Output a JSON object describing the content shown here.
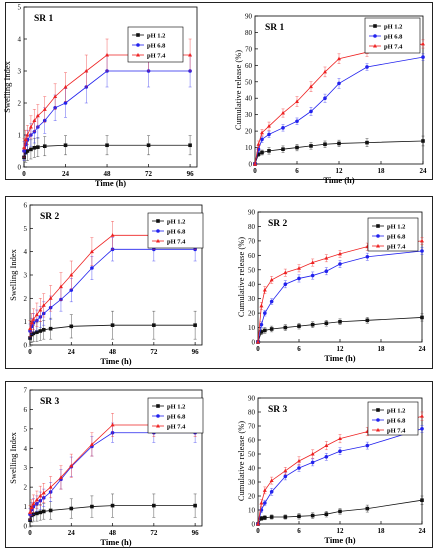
{
  "series_colors": [
    "#111111",
    "#2222ee",
    "#ee2222"
  ],
  "series_markers": [
    "square",
    "circle",
    "triangle"
  ],
  "chart_data": [
    {
      "type": "line",
      "panel": 0,
      "title": "SR 1",
      "xlabel": "Time (h)",
      "ylabel": "Swelling Index",
      "xlim": [
        0,
        100
      ],
      "ylim": [
        0,
        5
      ],
      "xticks": [
        0,
        24,
        48,
        72,
        96
      ],
      "yticks": [
        0,
        1,
        2,
        3,
        4,
        5
      ],
      "legend": "top-right",
      "series": [
        {
          "name": "pH 1.2",
          "x": [
            0,
            1,
            2,
            4,
            6,
            8,
            12,
            24,
            48,
            72,
            96
          ],
          "y": [
            0.3,
            0.45,
            0.5,
            0.55,
            0.6,
            0.62,
            0.65,
            0.68,
            0.68,
            0.68,
            0.68
          ],
          "err": [
            0.3,
            0.3,
            0.3,
            0.3,
            0.3,
            0.3,
            0.3,
            0.3,
            0.3,
            0.3,
            0.3
          ]
        },
        {
          "name": "pH 6.8",
          "x": [
            0,
            1,
            2,
            4,
            6,
            8,
            12,
            18,
            24,
            36,
            48,
            72,
            96
          ],
          "y": [
            0.5,
            0.7,
            0.85,
            1.0,
            1.1,
            1.25,
            1.45,
            1.85,
            2.0,
            2.5,
            3.0,
            3.0,
            3.0
          ],
          "err": [
            0.3,
            0.3,
            0.3,
            0.35,
            0.35,
            0.35,
            0.4,
            0.4,
            0.45,
            0.5,
            0.5,
            0.5,
            0.5
          ]
        },
        {
          "name": "pH 7.4",
          "x": [
            0,
            1,
            2,
            4,
            6,
            8,
            12,
            18,
            24,
            36,
            48,
            72,
            96
          ],
          "y": [
            0.6,
            0.85,
            1.0,
            1.25,
            1.45,
            1.6,
            1.8,
            2.2,
            2.5,
            3.0,
            3.5,
            3.5,
            3.5
          ],
          "err": [
            0.3,
            0.3,
            0.3,
            0.35,
            0.35,
            0.35,
            0.4,
            0.4,
            0.45,
            0.5,
            0.5,
            0.5,
            0.5
          ]
        }
      ]
    },
    {
      "type": "line",
      "panel": 0,
      "title": "SR 1",
      "xlabel": "Time (h)",
      "ylabel": "Cumulative release (%)",
      "xlim": [
        0,
        24
      ],
      "ylim": [
        0,
        90
      ],
      "xticks": [
        0,
        6,
        12,
        18,
        24
      ],
      "yticks": [
        0,
        10,
        20,
        30,
        40,
        50,
        60,
        70,
        80,
        90
      ],
      "legend": "top-left",
      "series": [
        {
          "name": "pH 1.2",
          "x": [
            0,
            0.5,
            1,
            2,
            4,
            6,
            8,
            10,
            12,
            16,
            24
          ],
          "y": [
            0,
            6,
            7,
            8,
            9,
            10,
            11,
            12,
            12.5,
            13,
            14
          ],
          "err": [
            1,
            1.5,
            1.5,
            2,
            2,
            2,
            2,
            2,
            2,
            2.5,
            3
          ]
        },
        {
          "name": "pH 6.8",
          "x": [
            0,
            0.5,
            1,
            2,
            4,
            6,
            8,
            10,
            12,
            16,
            24
          ],
          "y": [
            0,
            9,
            15,
            18,
            22,
            26,
            32,
            40,
            49,
            59,
            65
          ],
          "err": [
            1,
            2,
            2,
            2,
            2,
            2,
            2.5,
            2.5,
            3,
            2,
            2
          ]
        },
        {
          "name": "pH 7.4",
          "x": [
            0,
            0.5,
            1,
            2,
            4,
            6,
            8,
            10,
            12,
            16,
            24
          ],
          "y": [
            0,
            12,
            19,
            23,
            31,
            38,
            47,
            56,
            64,
            68,
            73
          ],
          "err": [
            1,
            2,
            2,
            2.5,
            2.5,
            3,
            3,
            3,
            3,
            2.5,
            2.5
          ]
        }
      ]
    },
    {
      "type": "line",
      "panel": 1,
      "title": "SR 2",
      "xlabel": "Time (h)",
      "ylabel": "Swelling Index",
      "xlim": [
        0,
        100
      ],
      "ylim": [
        0,
        6
      ],
      "xticks": [
        0,
        24,
        48,
        72,
        96
      ],
      "yticks": [
        0,
        1,
        2,
        3,
        4,
        5,
        6
      ],
      "legend": "top-right",
      "series": [
        {
          "name": "pH 1.2",
          "x": [
            0,
            1,
            2,
            4,
            6,
            8,
            12,
            24,
            48,
            72,
            96
          ],
          "y": [
            0.3,
            0.45,
            0.5,
            0.55,
            0.6,
            0.65,
            0.7,
            0.8,
            0.85,
            0.85,
            0.85
          ],
          "err": [
            0.35,
            0.35,
            0.35,
            0.4,
            0.4,
            0.4,
            0.45,
            0.5,
            0.6,
            0.6,
            0.6
          ]
        },
        {
          "name": "pH 6.8",
          "x": [
            0,
            1,
            2,
            4,
            6,
            8,
            12,
            18,
            24,
            36,
            48,
            72,
            96
          ],
          "y": [
            0.6,
            0.8,
            0.95,
            1.05,
            1.2,
            1.35,
            1.6,
            1.95,
            2.35,
            3.3,
            4.1,
            4.1,
            4.1
          ],
          "err": [
            0.3,
            0.35,
            0.4,
            0.45,
            0.45,
            0.5,
            0.5,
            0.5,
            0.5,
            0.5,
            0.5,
            0.5,
            0.5
          ]
        },
        {
          "name": "pH 7.4",
          "x": [
            0,
            1,
            2,
            4,
            6,
            8,
            12,
            18,
            24,
            36,
            48,
            72,
            96
          ],
          "y": [
            0.7,
            0.95,
            1.1,
            1.3,
            1.5,
            1.7,
            2.0,
            2.5,
            3.0,
            4.0,
            4.7,
            4.7,
            4.7
          ],
          "err": [
            0.35,
            0.4,
            0.45,
            0.5,
            0.5,
            0.5,
            0.55,
            0.6,
            0.6,
            0.6,
            0.6,
            0.6,
            0.6
          ]
        }
      ]
    },
    {
      "type": "line",
      "panel": 1,
      "title": "SR 2",
      "xlabel": "Time (h)",
      "ylabel": "Cumulative release (%)",
      "xlim": [
        0,
        24
      ],
      "ylim": [
        0,
        90
      ],
      "xticks": [
        0,
        6,
        12,
        18,
        24
      ],
      "yticks": [
        0,
        10,
        20,
        30,
        40,
        50,
        60,
        70,
        80,
        90
      ],
      "legend": "top-right",
      "series": [
        {
          "name": "pH 1.2",
          "x": [
            0,
            0.5,
            1,
            2,
            4,
            6,
            8,
            10,
            12,
            16,
            24
          ],
          "y": [
            0,
            7,
            8,
            9,
            10,
            11,
            12,
            13,
            14,
            15,
            17
          ],
          "err": [
            1,
            2,
            2,
            2,
            2,
            2,
            2,
            2,
            2,
            2,
            2.5
          ]
        },
        {
          "name": "pH 6.8",
          "x": [
            0,
            0.5,
            1,
            2,
            4,
            6,
            8,
            10,
            12,
            16,
            24
          ],
          "y": [
            0,
            12,
            20,
            28,
            40,
            44,
            46,
            49,
            54,
            59,
            63
          ],
          "err": [
            1,
            2,
            2,
            2,
            2.5,
            2.5,
            2.5,
            2.5,
            2.5,
            2.5,
            2.5
          ]
        },
        {
          "name": "pH 7.4",
          "x": [
            0,
            0.5,
            1,
            2,
            4,
            6,
            8,
            10,
            12,
            16,
            24
          ],
          "y": [
            0,
            25,
            36,
            43,
            48,
            51,
            55,
            58,
            61,
            66,
            70
          ],
          "err": [
            1,
            2.5,
            2.5,
            2.5,
            2.5,
            2.5,
            2.5,
            2.5,
            2.5,
            2.5,
            2.5
          ]
        }
      ]
    },
    {
      "type": "line",
      "panel": 2,
      "title": "SR 3",
      "xlabel": "Time (h)",
      "ylabel": "Swelling Index",
      "xlim": [
        0,
        100
      ],
      "ylim": [
        0,
        7
      ],
      "xticks": [
        0,
        24,
        48,
        72,
        96
      ],
      "yticks": [
        0,
        1,
        2,
        3,
        4,
        5,
        6,
        7
      ],
      "legend": "top-right",
      "series": [
        {
          "name": "pH 1.2",
          "x": [
            0,
            1,
            2,
            4,
            6,
            8,
            12,
            24,
            36,
            48,
            72,
            96
          ],
          "y": [
            0.3,
            0.55,
            0.6,
            0.65,
            0.7,
            0.75,
            0.8,
            0.9,
            1.0,
            1.05,
            1.05,
            1.05
          ],
          "err": [
            0.35,
            0.35,
            0.35,
            0.4,
            0.4,
            0.4,
            0.45,
            0.5,
            0.55,
            0.6,
            0.6,
            0.6
          ]
        },
        {
          "name": "pH 6.8",
          "x": [
            0,
            1,
            2,
            4,
            6,
            8,
            12,
            18,
            24,
            36,
            48,
            72,
            96
          ],
          "y": [
            0.6,
            0.85,
            1.0,
            1.15,
            1.3,
            1.45,
            1.75,
            2.4,
            3.05,
            4.1,
            4.8,
            4.8,
            4.8
          ],
          "err": [
            0.3,
            0.35,
            0.4,
            0.4,
            0.45,
            0.45,
            0.5,
            0.5,
            0.5,
            0.5,
            0.5,
            0.5,
            0.5
          ]
        },
        {
          "name": "pH 7.4",
          "x": [
            0,
            1,
            2,
            4,
            6,
            8,
            12,
            18,
            24,
            36,
            48,
            72,
            96
          ],
          "y": [
            0.7,
            0.95,
            1.15,
            1.35,
            1.55,
            1.7,
            2.0,
            2.5,
            3.1,
            4.2,
            5.2,
            5.2,
            5.2
          ],
          "err": [
            0.35,
            0.4,
            0.45,
            0.45,
            0.5,
            0.5,
            0.55,
            0.6,
            0.6,
            0.6,
            0.6,
            0.6,
            0.6
          ]
        }
      ]
    },
    {
      "type": "line",
      "panel": 2,
      "title": "SR 3",
      "xlabel": "Time (h)",
      "ylabel": "Cumulative release (%)",
      "xlim": [
        0,
        24
      ],
      "ylim": [
        0,
        90
      ],
      "xticks": [
        0,
        6,
        12,
        18,
        24
      ],
      "yticks": [
        0,
        10,
        20,
        30,
        40,
        50,
        60,
        70,
        80,
        90
      ],
      "legend": "top-right",
      "series": [
        {
          "name": "pH 1.2",
          "x": [
            0,
            0.5,
            1,
            2,
            4,
            6,
            8,
            10,
            12,
            16,
            24
          ],
          "y": [
            0,
            4,
            4.5,
            5,
            5,
            5.5,
            6,
            7,
            9,
            11,
            17
          ],
          "err": [
            1,
            1.5,
            1.5,
            1.5,
            1.5,
            2,
            2,
            2,
            2,
            2.5,
            3
          ]
        },
        {
          "name": "pH 6.8",
          "x": [
            0,
            0.5,
            1,
            2,
            4,
            6,
            8,
            10,
            12,
            16,
            24
          ],
          "y": [
            0,
            10,
            15,
            23,
            34,
            40,
            44,
            48,
            52,
            56,
            68
          ],
          "err": [
            1,
            2,
            2,
            2.5,
            2.5,
            2.5,
            2.5,
            2.5,
            2.5,
            2.5,
            2.5
          ]
        },
        {
          "name": "pH 7.4",
          "x": [
            0,
            0.5,
            1,
            2,
            4,
            6,
            8,
            10,
            12,
            16,
            24
          ],
          "y": [
            0,
            15,
            24,
            31,
            38,
            45,
            50,
            56,
            61,
            66,
            77
          ],
          "err": [
            1,
            2.5,
            2.5,
            2.5,
            2.5,
            3,
            3,
            3,
            3,
            3,
            3
          ]
        }
      ]
    }
  ]
}
